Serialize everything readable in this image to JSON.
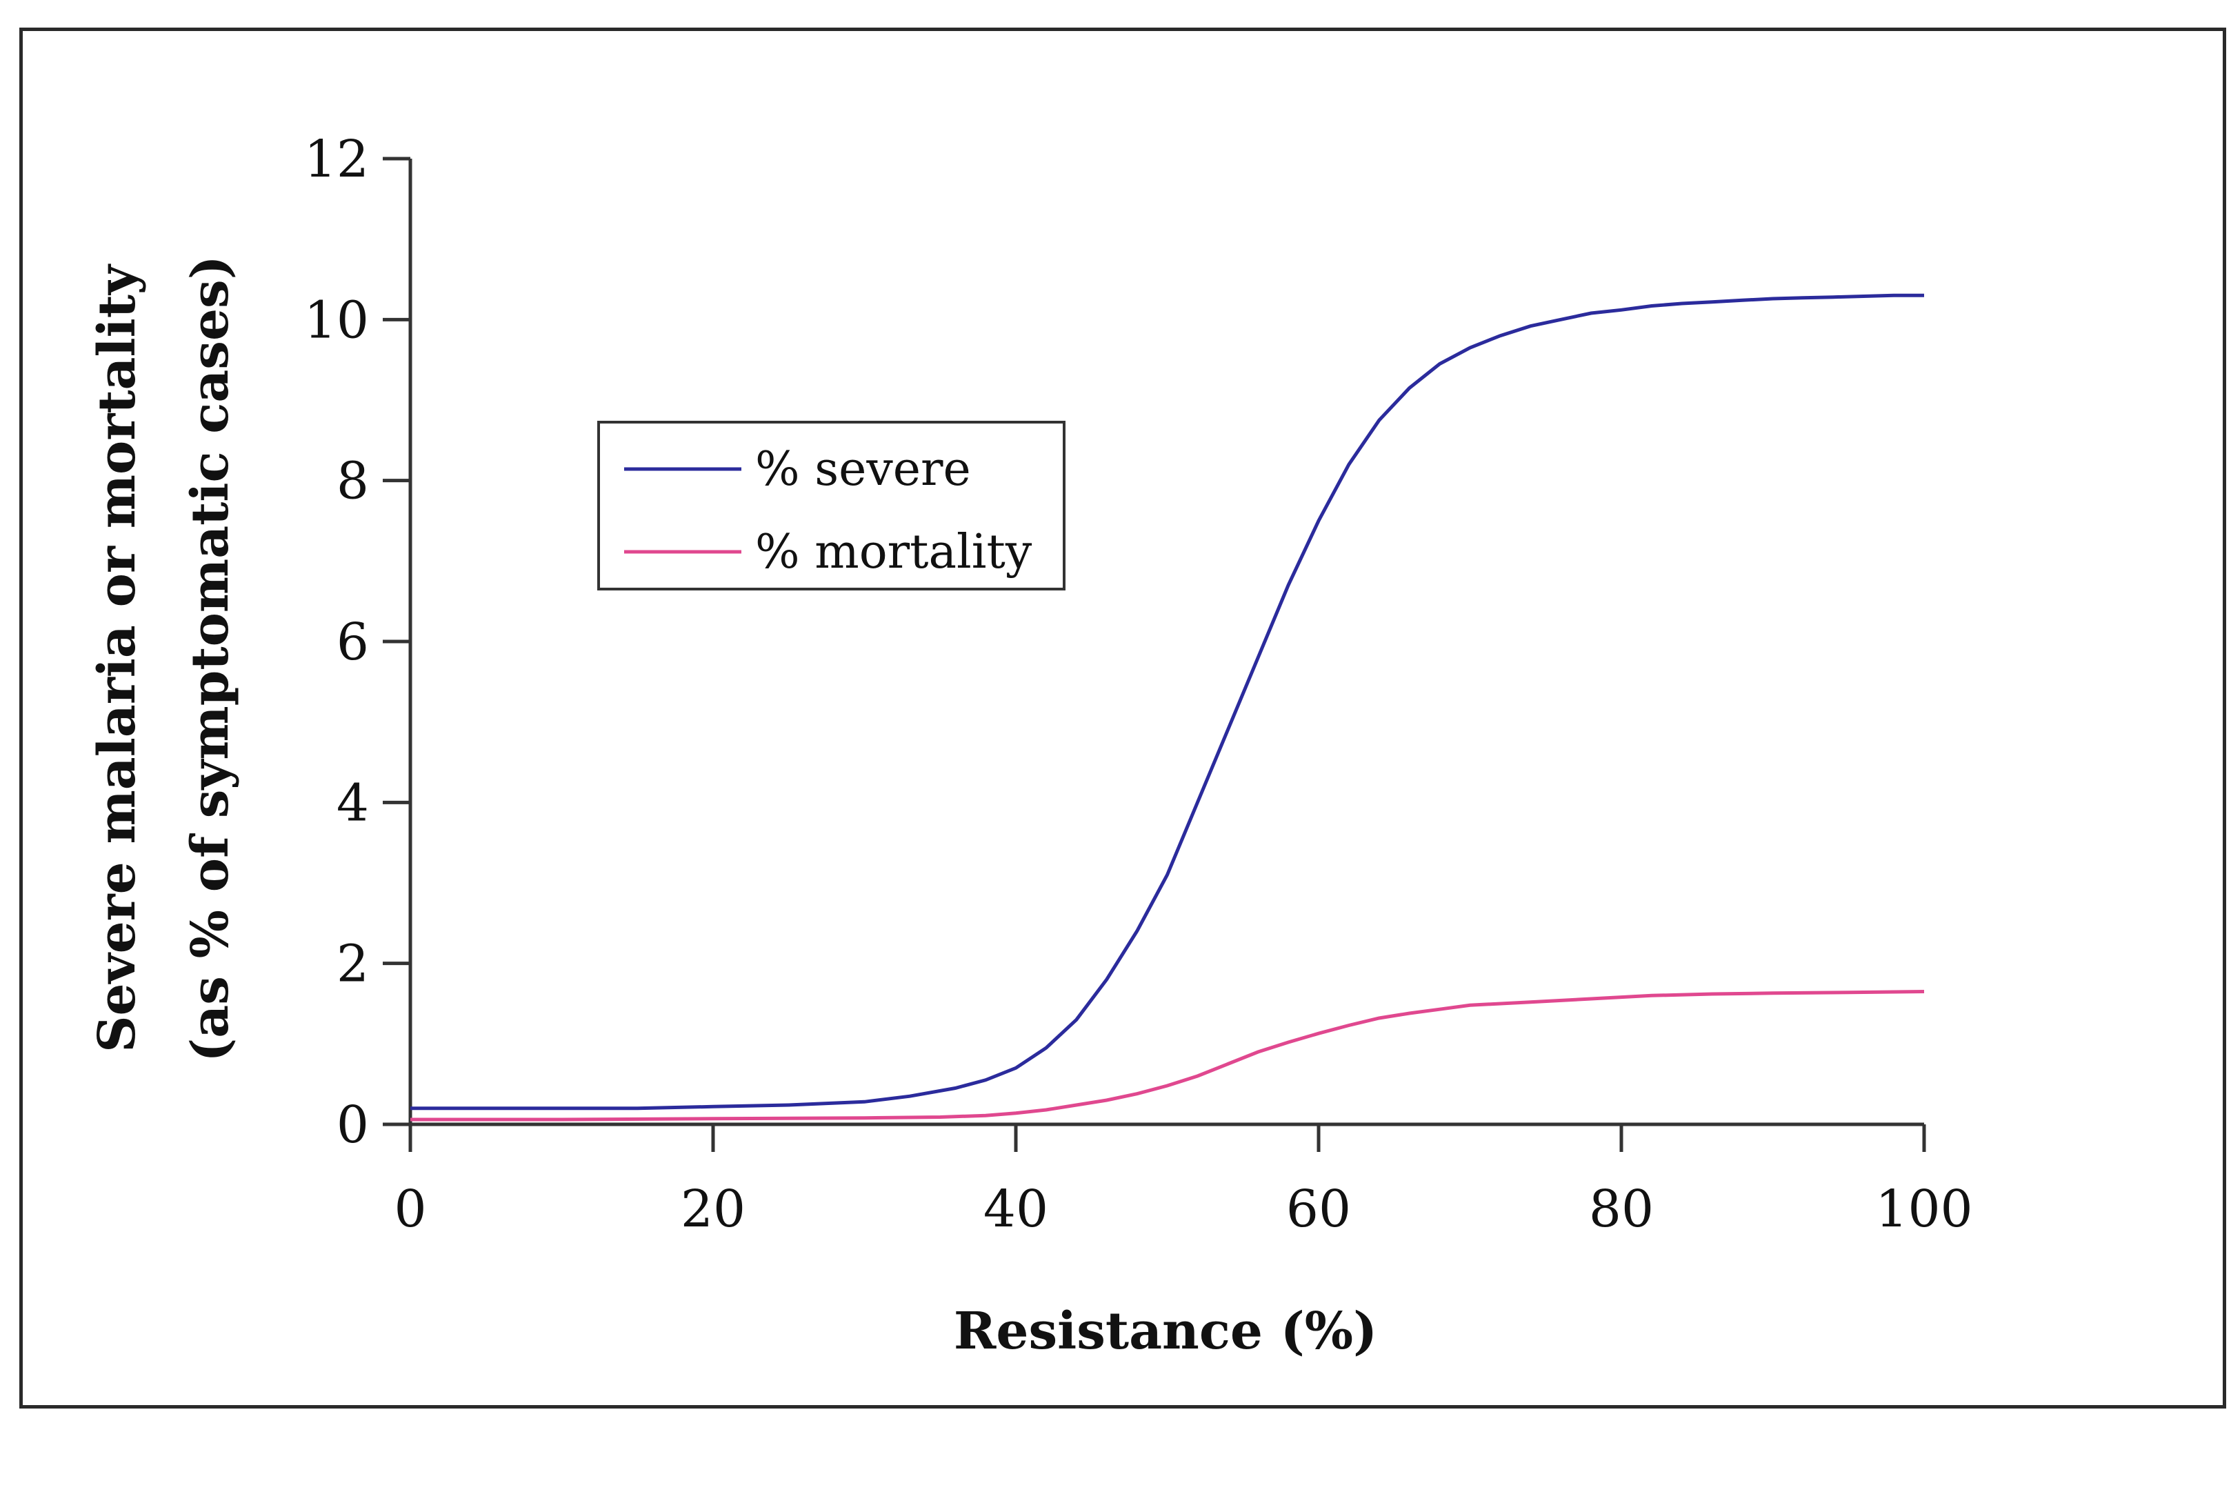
{
  "chart_data": {
    "type": "line",
    "xlabel": "Resistance (%)",
    "ylabel": "Severe malaria or mortality",
    "ylabel_sub": "(as % of symptomatic cases)",
    "xlim": [
      0,
      100
    ],
    "ylim": [
      0,
      12
    ],
    "x_ticks": [
      "0",
      "20",
      "40",
      "60",
      "80",
      "100"
    ],
    "y_ticks": [
      "0",
      "2",
      "4",
      "6",
      "8",
      "10",
      "12"
    ],
    "legend_position": "upper-left-inside",
    "grid": false,
    "series": [
      {
        "name": "% severe",
        "color": "#2b2b9c",
        "x": [
          0,
          5,
          10,
          15,
          20,
          25,
          30,
          33,
          36,
          38,
          40,
          42,
          44,
          46,
          48,
          50,
          52,
          54,
          56,
          58,
          60,
          62,
          64,
          66,
          68,
          70,
          72,
          74,
          76,
          78,
          80,
          82,
          84,
          86,
          88,
          90,
          92,
          94,
          96,
          98,
          100
        ],
        "values": [
          0.2,
          0.2,
          0.2,
          0.2,
          0.22,
          0.24,
          0.28,
          0.35,
          0.45,
          0.55,
          0.7,
          0.95,
          1.3,
          1.8,
          2.4,
          3.1,
          4.0,
          4.9,
          5.8,
          6.7,
          7.5,
          8.2,
          8.75,
          9.15,
          9.45,
          9.65,
          9.8,
          9.92,
          10.0,
          10.08,
          10.12,
          10.17,
          10.2,
          10.22,
          10.24,
          10.26,
          10.27,
          10.28,
          10.29,
          10.3,
          10.3
        ]
      },
      {
        "name": "% mortality",
        "color": "#e0488f",
        "x": [
          0,
          10,
          20,
          30,
          35,
          38,
          40,
          42,
          44,
          46,
          48,
          50,
          52,
          54,
          56,
          58,
          60,
          62,
          64,
          66,
          68,
          70,
          74,
          78,
          82,
          86,
          90,
          95,
          100
        ],
        "values": [
          0.06,
          0.06,
          0.07,
          0.08,
          0.09,
          0.11,
          0.14,
          0.18,
          0.24,
          0.3,
          0.38,
          0.48,
          0.6,
          0.75,
          0.9,
          1.02,
          1.13,
          1.23,
          1.32,
          1.38,
          1.43,
          1.48,
          1.52,
          1.56,
          1.6,
          1.62,
          1.63,
          1.64,
          1.65
        ]
      }
    ]
  }
}
